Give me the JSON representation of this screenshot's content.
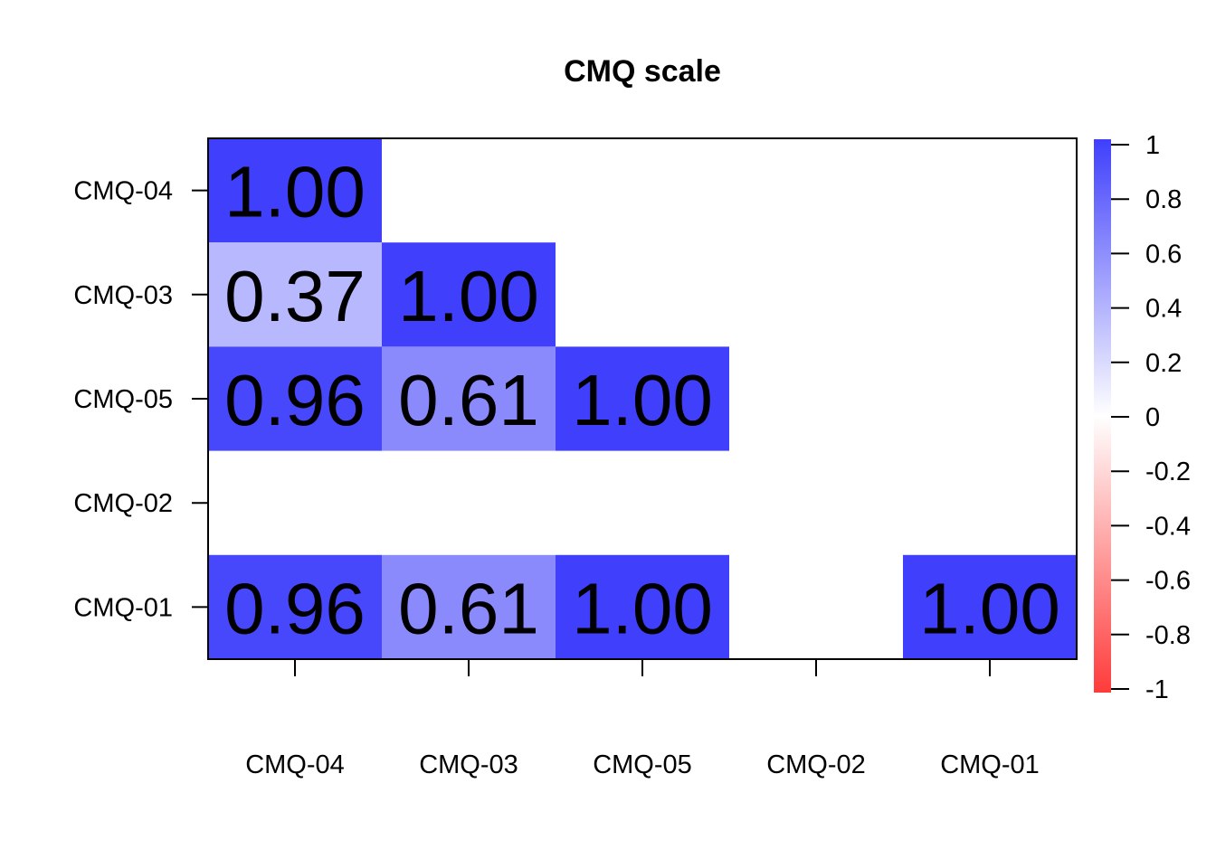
{
  "chart_data": {
    "type": "heatmap",
    "title": "CMQ scale",
    "rows": [
      "CMQ-04",
      "CMQ-03",
      "CMQ-05",
      "CMQ-02",
      "CMQ-01"
    ],
    "columns": [
      "CMQ-04",
      "CMQ-03",
      "CMQ-05",
      "CMQ-02",
      "CMQ-01"
    ],
    "values": [
      [
        1.0,
        null,
        null,
        null,
        null
      ],
      [
        0.37,
        1.0,
        null,
        null,
        null
      ],
      [
        0.96,
        0.61,
        1.0,
        null,
        null
      ],
      [
        null,
        null,
        null,
        null,
        null
      ],
      [
        0.96,
        0.61,
        1.0,
        null,
        1.0
      ]
    ],
    "value_labels": [
      [
        "1.00",
        "",
        "",
        "",
        ""
      ],
      [
        "0.37",
        "1.00",
        "",
        "",
        ""
      ],
      [
        "0.96",
        "0.61",
        "1.00",
        "",
        ""
      ],
      [
        "",
        "",
        "",
        "",
        ""
      ],
      [
        "0.96",
        "0.61",
        "1.00",
        "",
        "1.00"
      ]
    ],
    "color_scale": {
      "min": -1,
      "max": 1,
      "low_color": "#ff3b3b",
      "mid_color": "#ffffff",
      "high_color": "#3f3ffc",
      "ticks": [
        "1",
        "0.8",
        "0.6",
        "0.4",
        "0.2",
        "0",
        "-0.2",
        "-0.4",
        "-0.6",
        "-0.8",
        "-1"
      ],
      "tick_values": [
        1,
        0.8,
        0.6,
        0.4,
        0.2,
        0,
        -0.2,
        -0.4,
        -0.6,
        -0.8,
        -1
      ]
    },
    "legend": "right"
  }
}
